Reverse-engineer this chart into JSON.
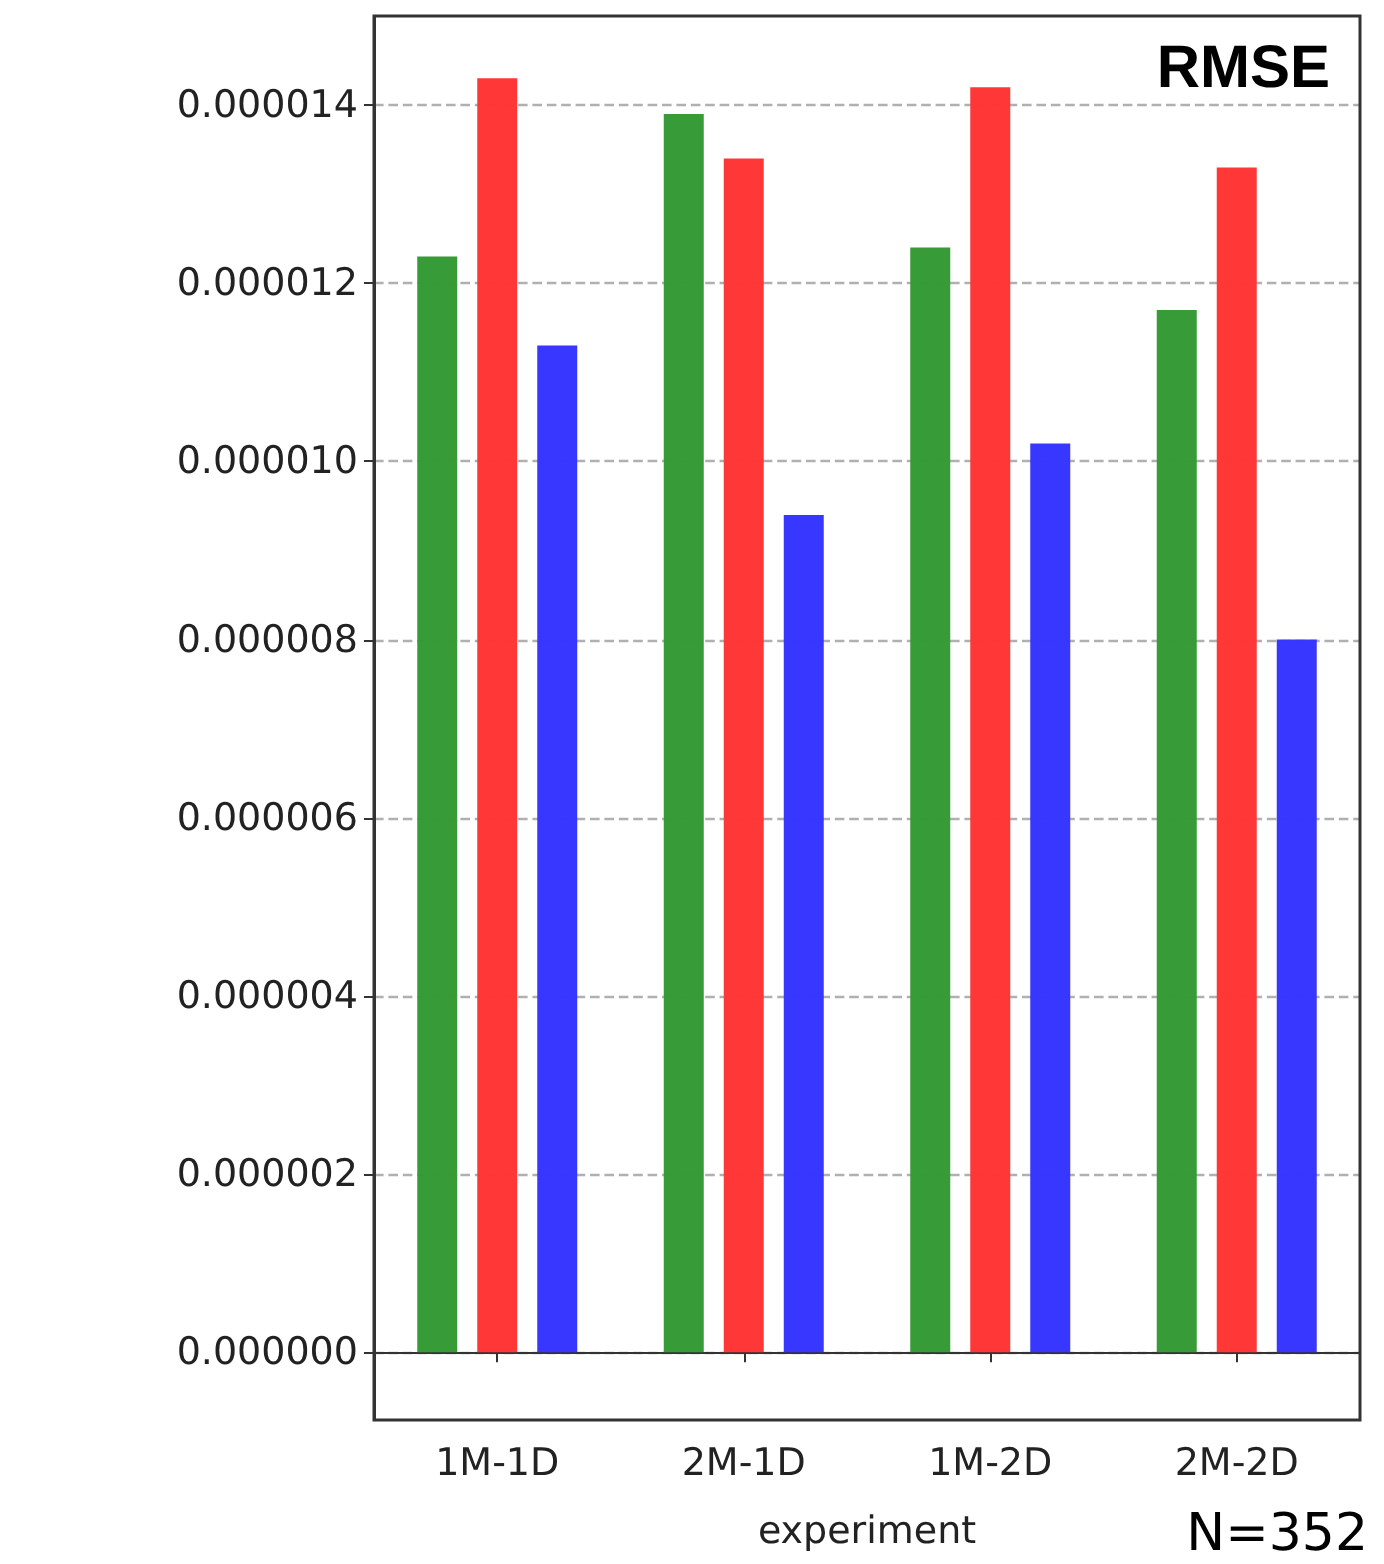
{
  "chart_data": {
    "type": "bar",
    "title": "RMSE",
    "xlabel": "experiment",
    "categories": [
      "1M-1D",
      "2M-1D",
      "1M-2D",
      "2M-2D"
    ],
    "series": [
      {
        "color": "#339933",
        "values": [
          1.23e-05,
          1.39e-05,
          1.24e-05,
          1.17e-05
        ]
      },
      {
        "color": "#ff3333",
        "values": [
          1.43e-05,
          1.34e-05,
          1.42e-05,
          1.33e-05
        ]
      },
      {
        "color": "#3333ff",
        "values": [
          1.13e-05,
          9.4e-06,
          1.02e-05,
          8e-06
        ]
      }
    ],
    "ylim": [
      -7.6e-07,
      1.5e-05
    ],
    "yticks": [
      {
        "value": 0,
        "label": "0.000000"
      },
      {
        "value": 2e-06,
        "label": "0.000002"
      },
      {
        "value": 4e-06,
        "label": "0.000004"
      },
      {
        "value": 6e-06,
        "label": "0.000006"
      },
      {
        "value": 8e-06,
        "label": "0.000008"
      },
      {
        "value": 1e-05,
        "label": "0.000010"
      },
      {
        "value": 1.2e-05,
        "label": "0.000012"
      },
      {
        "value": 1.4e-05,
        "label": "0.000014"
      }
    ],
    "grid": "y",
    "annotations": [
      "N=352"
    ]
  }
}
